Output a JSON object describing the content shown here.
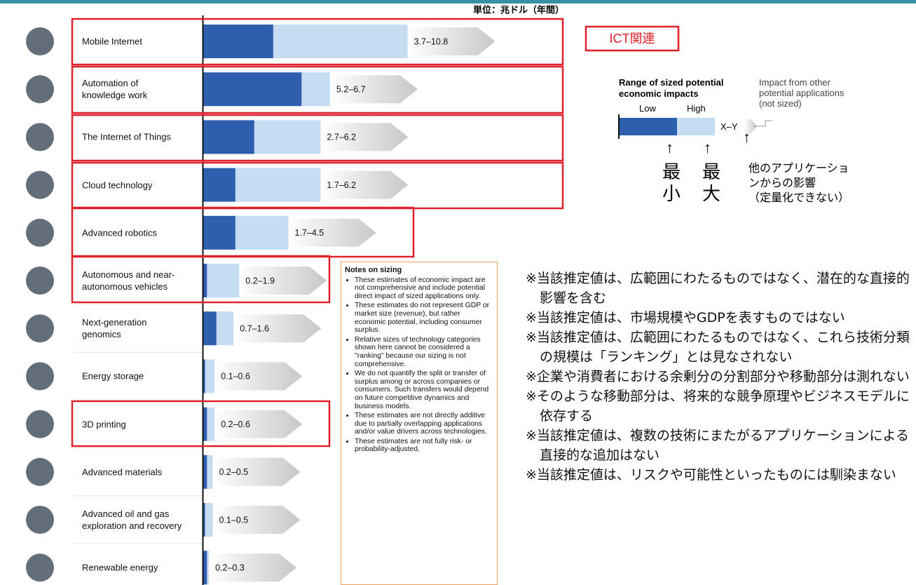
{
  "chart_data": {
    "type": "range_bar",
    "unit_label": "単位：兆ドル（年間）",
    "categories": [
      "Mobile Internet",
      "Automation of\nknowledge work",
      "The Internet of Things",
      "Cloud technology",
      "Advanced robotics",
      "Autonomous and near-\nautonomous vehicles",
      "Next-generation\ngenomics",
      "Energy storage",
      "3D printing",
      "Advanced materials",
      "Advanced oil and gas\nexploration and recovery",
      "Renewable energy"
    ],
    "series": [
      {
        "name": "Low",
        "color": "#2e5fae",
        "values": [
          3.7,
          5.2,
          2.7,
          1.7,
          1.7,
          0.2,
          0.7,
          0.1,
          0.2,
          0.2,
          0.1,
          0.2
        ]
      },
      {
        "name": "High",
        "color": "#c5dcf2",
        "values": [
          10.8,
          6.7,
          6.2,
          6.2,
          4.5,
          1.9,
          1.6,
          0.6,
          0.6,
          0.5,
          0.5,
          0.3
        ]
      }
    ],
    "value_labels": [
      "3.7–10.8",
      "5.2–6.7",
      "2.7–6.2",
      "1.7–6.2",
      "1.7–4.5",
      "0.2–1.9",
      "0.7–1.6",
      "0.1–0.6",
      "0.2–0.6",
      "0.2–0.5",
      "0.1–0.5",
      "0.2–0.3"
    ],
    "xlim": [
      0,
      15
    ]
  },
  "ict_label": "ICT関連",
  "legend": {
    "title": "Range of sized potential\neconomic impacts",
    "range_label": "X–Y",
    "other_label": "Impact from other\npotential applications\n(not sized)",
    "min_label": "最小",
    "max_label": "最大",
    "other_label_jp": "他のアプリケーショ\nンからの影響\n（定量化できない）"
  },
  "notes": {
    "title": "Notes on sizing",
    "items": [
      "These estimates of economic impact are not comprehensive and include potential direct impact of sized applications only.",
      "These estimates do not represent GDP or market size (revenue), but rather economic potential, including consumer surplus.",
      "Relative sizes of technology categories shown here cannot be considered a \"ranking\" because our sizing is not comprehensive.",
      "We do not quantify the split or transfer of surplus among or across companies or consumers. Such transfers would depend on future competitive dynamics and business models.",
      "These estimates are not directly additive due to partially overlapping applications and/or value drivers across technologies.",
      "These estimates are not fully risk- or probability-adjusted."
    ]
  },
  "jp_notes": [
    "※当該推定値は、広範囲にわたるものではなく、潜在的な直接的影響を含む",
    "※当該推定値は、市場規模やGDPを表すものではない",
    "※当該推定値は、広範囲にわたるものではなく、これら技術分類の規模は「ランキング」とは見なされない",
    "※企業や消費者における余剰分の分割部分や移動部分は測れない",
    "※そのような移動部分は、将来的な競争原理やビジネスモデルに依存する",
    "※当該推定値は、複数の技術にまたがるアプリケーションによる直接的な追加はない",
    "※当該推定値は、リスクや可能性といったものには馴染まない"
  ]
}
